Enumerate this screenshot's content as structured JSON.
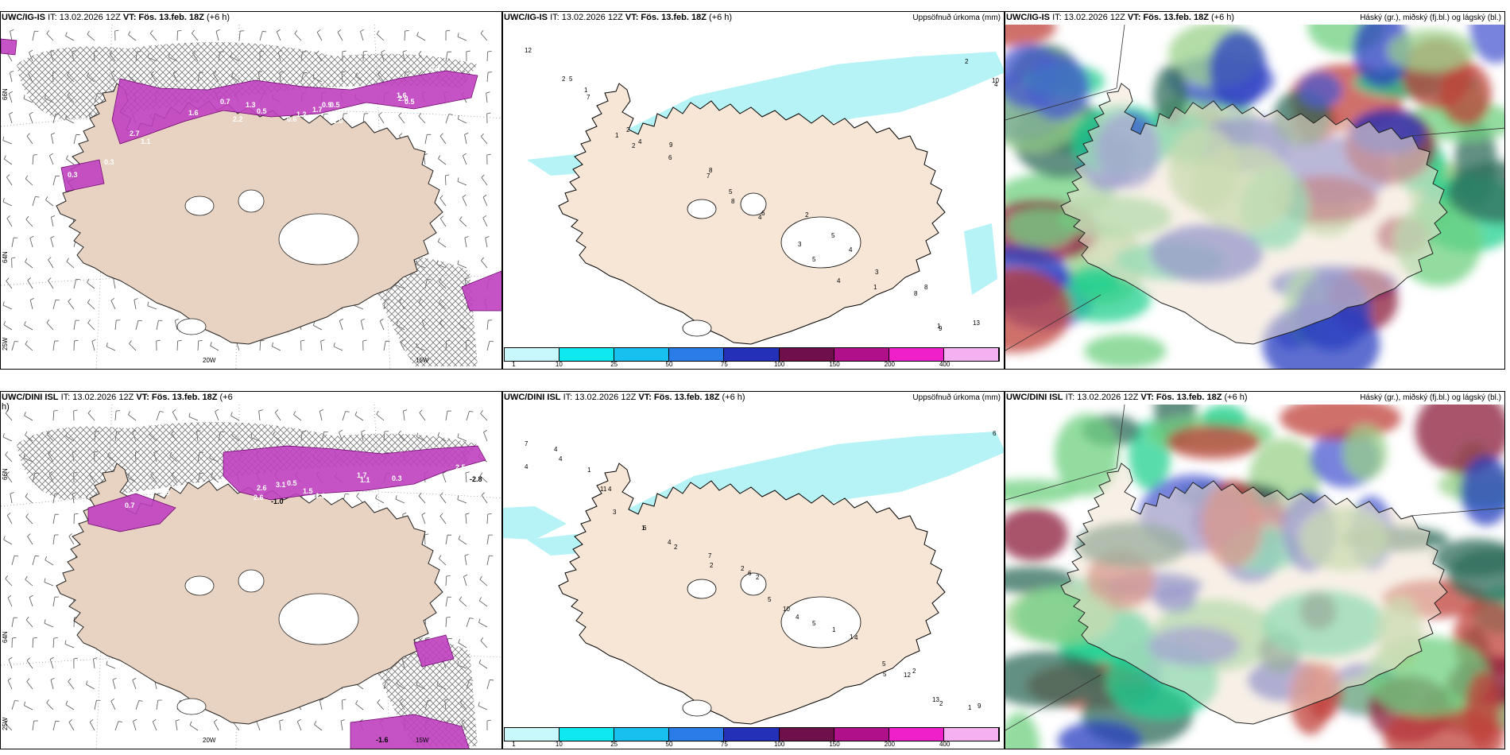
{
  "panels": [
    {
      "model": "UWC/IG-IS",
      "it": "IT: 13.02.2026 12Z",
      "vt": "VT: Fös. 13.feb. 18Z",
      "lead": "(+6 h)",
      "right": ""
    },
    {
      "model": "UWC/IG-IS",
      "it": "IT: 13.02.2026 12Z",
      "vt": "VT: Fös. 13.feb. 18Z",
      "lead": "(+6 h)",
      "right": "Uppsöfnuð úrkoma (mm)"
    },
    {
      "model": "UWC/IG-IS",
      "it": "IT: 13.02.2026 12Z",
      "vt": "VT: Fös. 13.feb. 18Z",
      "lead": "(+6 h)",
      "right": "Háský (gr.), miðský (fj.bl.) og lágský (bl.)"
    },
    {
      "model": "UWC/DINI ISL",
      "it": "IT: 13.02.2026 12Z",
      "vt": "VT: Fös. 13.feb. 18Z",
      "lead": "(+6 h)",
      "right": ""
    },
    {
      "model": "UWC/DINI ISL",
      "it": "IT: 13.02.2026 12Z",
      "vt": "VT: Fös. 13.feb. 18Z",
      "lead": "(+6 h)",
      "right": "Uppsöfnuð úrkoma (mm)"
    },
    {
      "model": "UWC/DINI ISL",
      "it": "IT: 13.02.2026 12Z",
      "vt": "VT: Fös. 13.feb. 18Z",
      "lead": "(+6 h)",
      "right": "Háský (gr.), miðský (fj.bl.) og lágský (bl.)"
    }
  ],
  "axis_labels": {
    "lon_20w": "20W",
    "lon_15w": "15W",
    "lat_66n": "66N",
    "lat_64n": "64N",
    "lon_25w": "25W"
  },
  "colorbar": {
    "ticks": [
      "1",
      "10",
      "25",
      "50",
      "75",
      "100",
      "150",
      "200",
      "400"
    ],
    "colors": [
      "#c8f8fb",
      "#10e8f0",
      "#18c0f0",
      "#2a7de8",
      "#2430b8",
      "#70104a",
      "#b0108a",
      "#f020c8",
      "#f4b0f0"
    ]
  },
  "temp_labels_top": [
    "0.3",
    "0.3",
    "0.3",
    "1.6",
    "0.7",
    "1.3",
    "2.7",
    "0.5",
    "0.9",
    "0.5",
    "1.0",
    "1.2",
    "0.6",
    "3.3",
    "1.6",
    "2.0",
    "0.5",
    "2.2",
    "1.1",
    "1.7"
  ],
  "temp_labels_bottom": [
    "-1.0",
    "-2.8",
    "-1.6",
    "1.8",
    "2.5",
    "2.6",
    "3.1",
    "1.5",
    "1.0",
    "0.8",
    "2.6",
    "1.7",
    "0.7",
    "1.1",
    "0.5",
    "0.3"
  ],
  "precip_labels_top": [
    "12",
    "5",
    "7",
    "2",
    "4",
    "9",
    "8",
    "8",
    "6",
    "2",
    "5",
    "4",
    "3",
    "8",
    "9",
    "13",
    "10",
    "2",
    "1",
    "1",
    "2",
    "6",
    "7",
    "5",
    "4",
    "3",
    "5",
    "4",
    "1",
    "8",
    "1",
    "2",
    "4"
  ],
  "precip_labels_bottom": [
    "7",
    "4",
    "11",
    "3",
    "1",
    "4",
    "7",
    "6",
    "2",
    "4",
    "1",
    "1",
    "5",
    "12",
    "13",
    "9",
    "6",
    "4",
    "1",
    "4",
    "6",
    "2",
    "2",
    "2",
    "5",
    "10",
    "5",
    "4",
    "5",
    "2",
    "2",
    "1",
    "4"
  ],
  "colors": {
    "land": "#f7e6d6",
    "land_dark": "#e6d3c2",
    "hatch": "#7a7a7a",
    "magenta": "#c040c0",
    "ocean_cyan": "#b5f3f6"
  }
}
